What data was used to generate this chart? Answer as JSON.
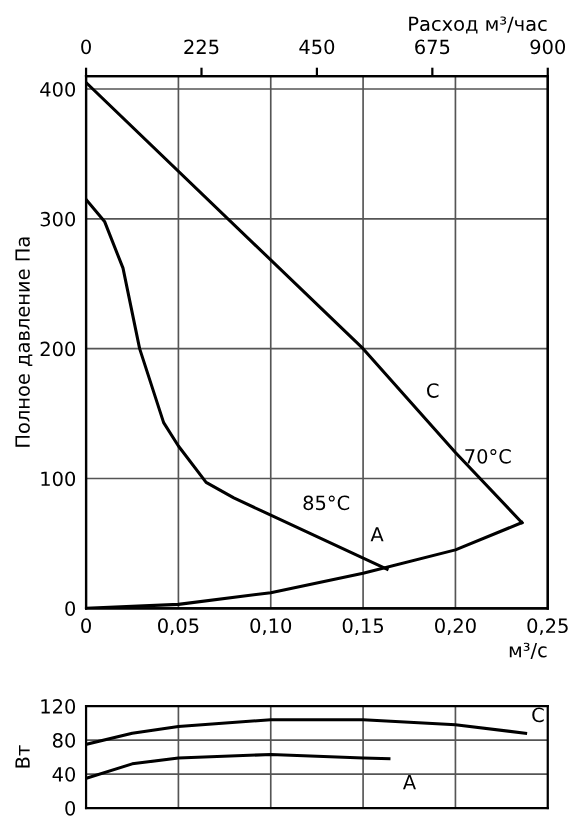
{
  "chart_data": [
    {
      "type": "line",
      "ylabel": "Полное давление Па",
      "xlabel": "м³/с",
      "x2label": "Расход м³/час",
      "xlim": [
        0,
        0.25
      ],
      "xticks": [
        0,
        {
          "value": 0.05,
          "label": "0,05"
        },
        {
          "value": 0.1,
          "label": "0,10"
        },
        {
          "value": 0.15,
          "label": "0,15"
        },
        {
          "value": 0.2,
          "label": "0,20"
        },
        {
          "value": 0.25,
          "label": "0,25"
        }
      ],
      "x2lim": [
        0,
        900
      ],
      "x2ticks": [
        0,
        225,
        450,
        675,
        900
      ],
      "ylim": [
        0,
        410
      ],
      "yticks": [
        0,
        100,
        200,
        300,
        400
      ],
      "grid": true,
      "color": "#000000",
      "series": [
        {
          "x": [
            0,
            0.15,
            0.2,
            0.236
          ],
          "values": [
            405,
            200,
            120,
            66
          ]
        },
        {
          "x": [
            0,
            0.01,
            0.02,
            0.029,
            0.042,
            0.05,
            0.065,
            0.08,
            0.163
          ],
          "values": [
            315,
            298,
            262,
            200,
            143,
            125,
            97,
            85,
            30
          ]
        },
        {
          "x": [
            0,
            0.05,
            0.1,
            0.15,
            0.2,
            0.236
          ],
          "values": [
            0,
            3,
            12,
            27,
            45,
            66
          ]
        }
      ],
      "annotations": [
        {
          "text": "C",
          "x": 0.175,
          "y": 160
        },
        {
          "text": "70°C",
          "x": 0.2,
          "y": 120
        },
        {
          "text": "85°C",
          "x": 0.12,
          "y": 58.5
        },
        {
          "text": "A",
          "x": 0.163,
          "y": 30
        }
      ]
    },
    {
      "type": "line",
      "ylabel": "Вт",
      "xlim": [
        0,
        0.25
      ],
      "ylim": [
        0,
        120
      ],
      "yticks": [
        0,
        40,
        80,
        120
      ],
      "grid": true,
      "tick_labels": "y",
      "color": "#000000",
      "series": [
        {
          "x": [
            0,
            0.025,
            0.05,
            0.1,
            0.15,
            0.2,
            0.238
          ],
          "values": [
            75,
            88,
            96,
            104,
            104,
            98,
            88
          ]
        },
        {
          "x": [
            0,
            0.025,
            0.05,
            0.1,
            0.15,
            0.164
          ],
          "values": [
            35,
            52,
            59,
            63,
            59,
            58
          ]
        }
      ],
      "annotations": [
        {
          "text": "C",
          "x": 0.238,
          "y": 88
        },
        {
          "text": "A",
          "x": 0.164,
          "y": 58
        }
      ]
    }
  ]
}
